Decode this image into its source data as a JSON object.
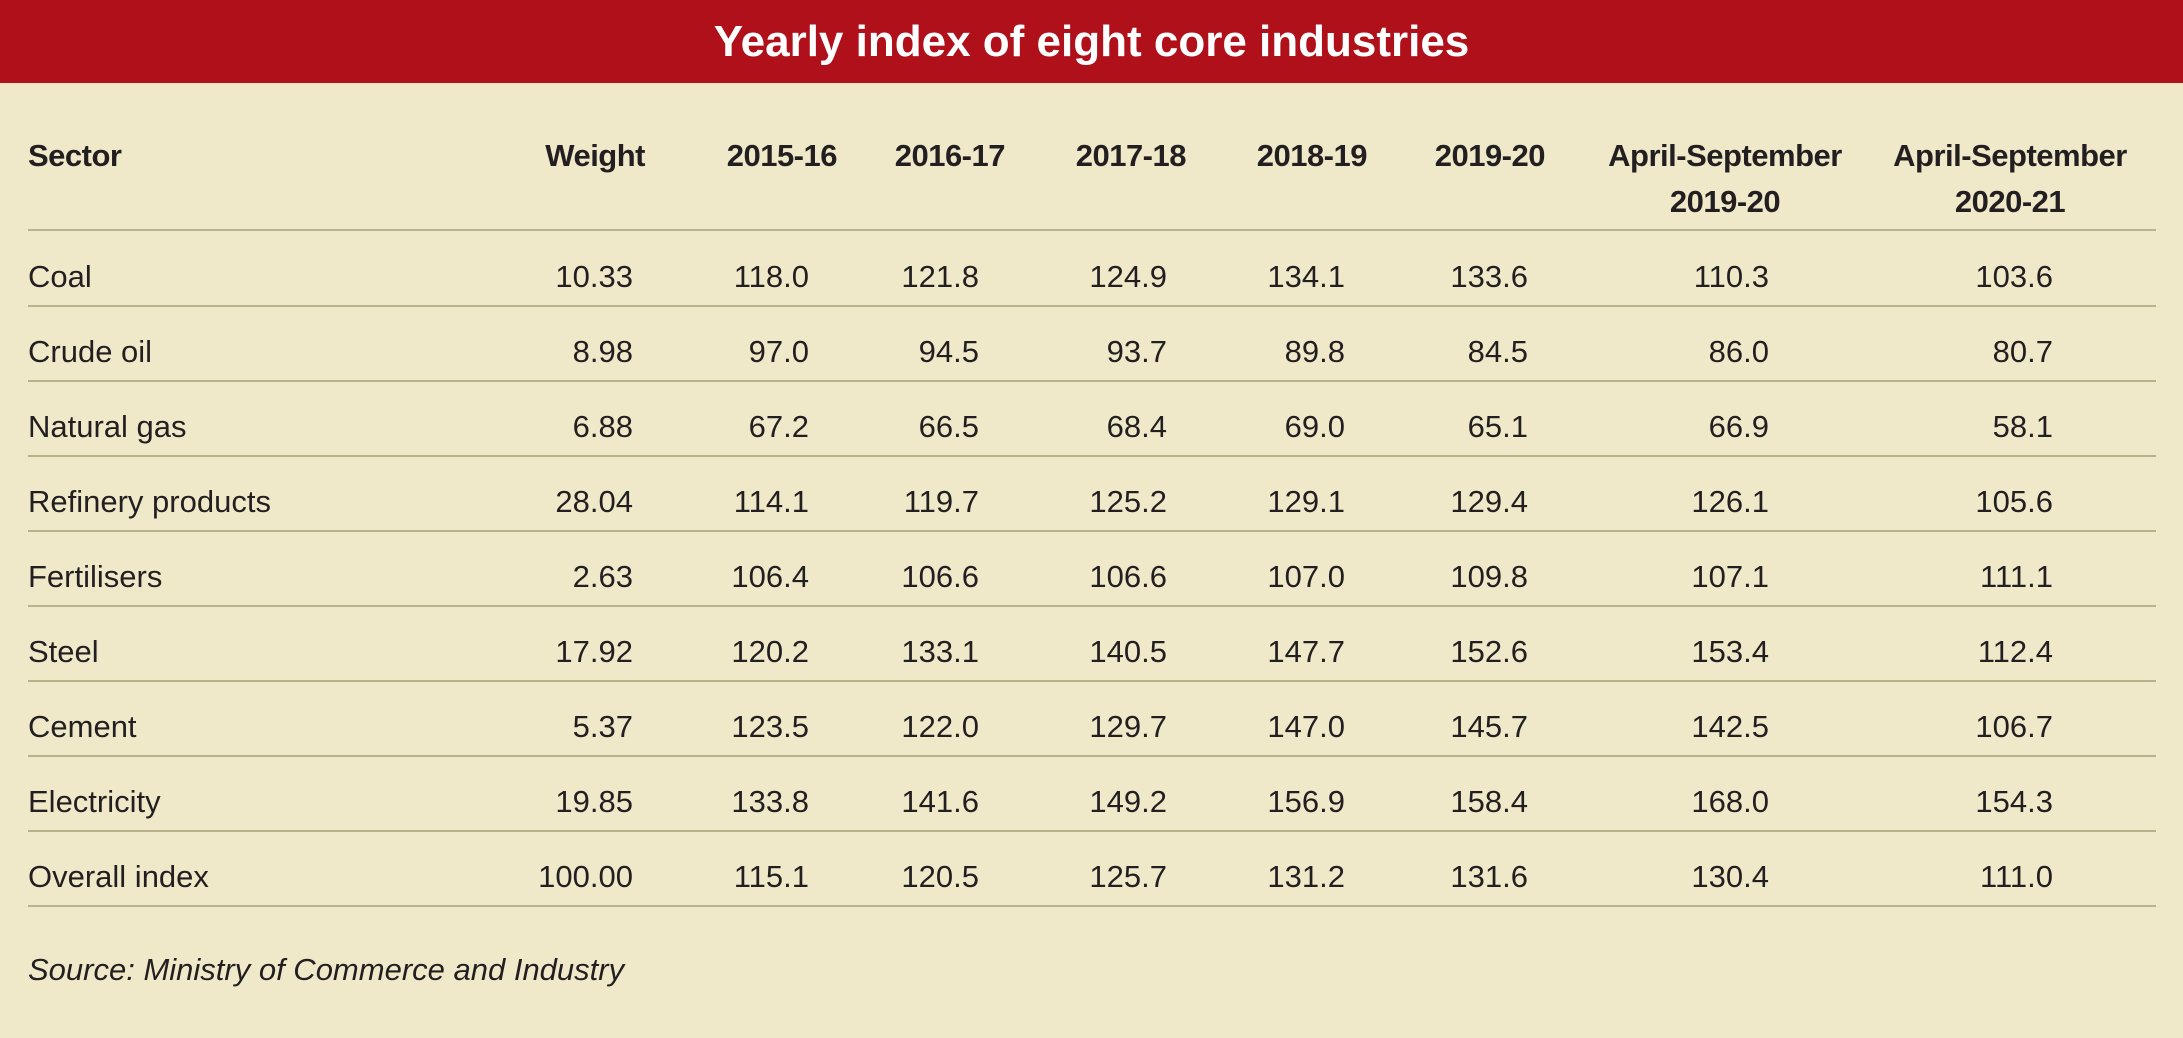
{
  "title": "Yearly index of eight core industries",
  "table": {
    "header": [
      "Sector",
      "Weight",
      "2015-16",
      "2016-17",
      "2017-18",
      "2018-19",
      "2019-20",
      "April-September 2019-20",
      "April-September 2020-21"
    ],
    "rows": [
      [
        "Coal",
        "10.33",
        "118.0",
        "121.8",
        "124.9",
        "134.1",
        "133.6",
        "110.3",
        "103.6"
      ],
      [
        "Crude oil",
        "8.98",
        "97.0",
        "94.5",
        "93.7",
        "89.8",
        "84.5",
        "86.0",
        "80.7"
      ],
      [
        "Natural gas",
        "6.88",
        "67.2",
        "66.5",
        "68.4",
        "69.0",
        "65.1",
        "66.9",
        "58.1"
      ],
      [
        "Refinery products",
        "28.04",
        "114.1",
        "119.7",
        "125.2",
        "129.1",
        "129.4",
        "126.1",
        "105.6"
      ],
      [
        "Fertilisers",
        "2.63",
        "106.4",
        "106.6",
        "106.6",
        "107.0",
        "109.8",
        "107.1",
        "111.1"
      ],
      [
        "Steel",
        "17.92",
        "120.2",
        "133.1",
        "140.5",
        "147.7",
        "152.6",
        "153.4",
        "112.4"
      ],
      [
        "Cement",
        "5.37",
        "123.5",
        "122.0",
        "129.7",
        "147.0",
        "145.7",
        "142.5",
        "106.7"
      ],
      [
        "Electricity",
        "19.85",
        "133.8",
        "141.6",
        "149.2",
        "156.9",
        "158.4",
        "168.0",
        "154.3"
      ],
      [
        "Overall index",
        "100.00",
        "115.1",
        "120.5",
        "125.7",
        "131.2",
        "131.6",
        "130.4",
        "111.0"
      ]
    ]
  },
  "source": "Source: Ministry of Commerce and Industry"
}
